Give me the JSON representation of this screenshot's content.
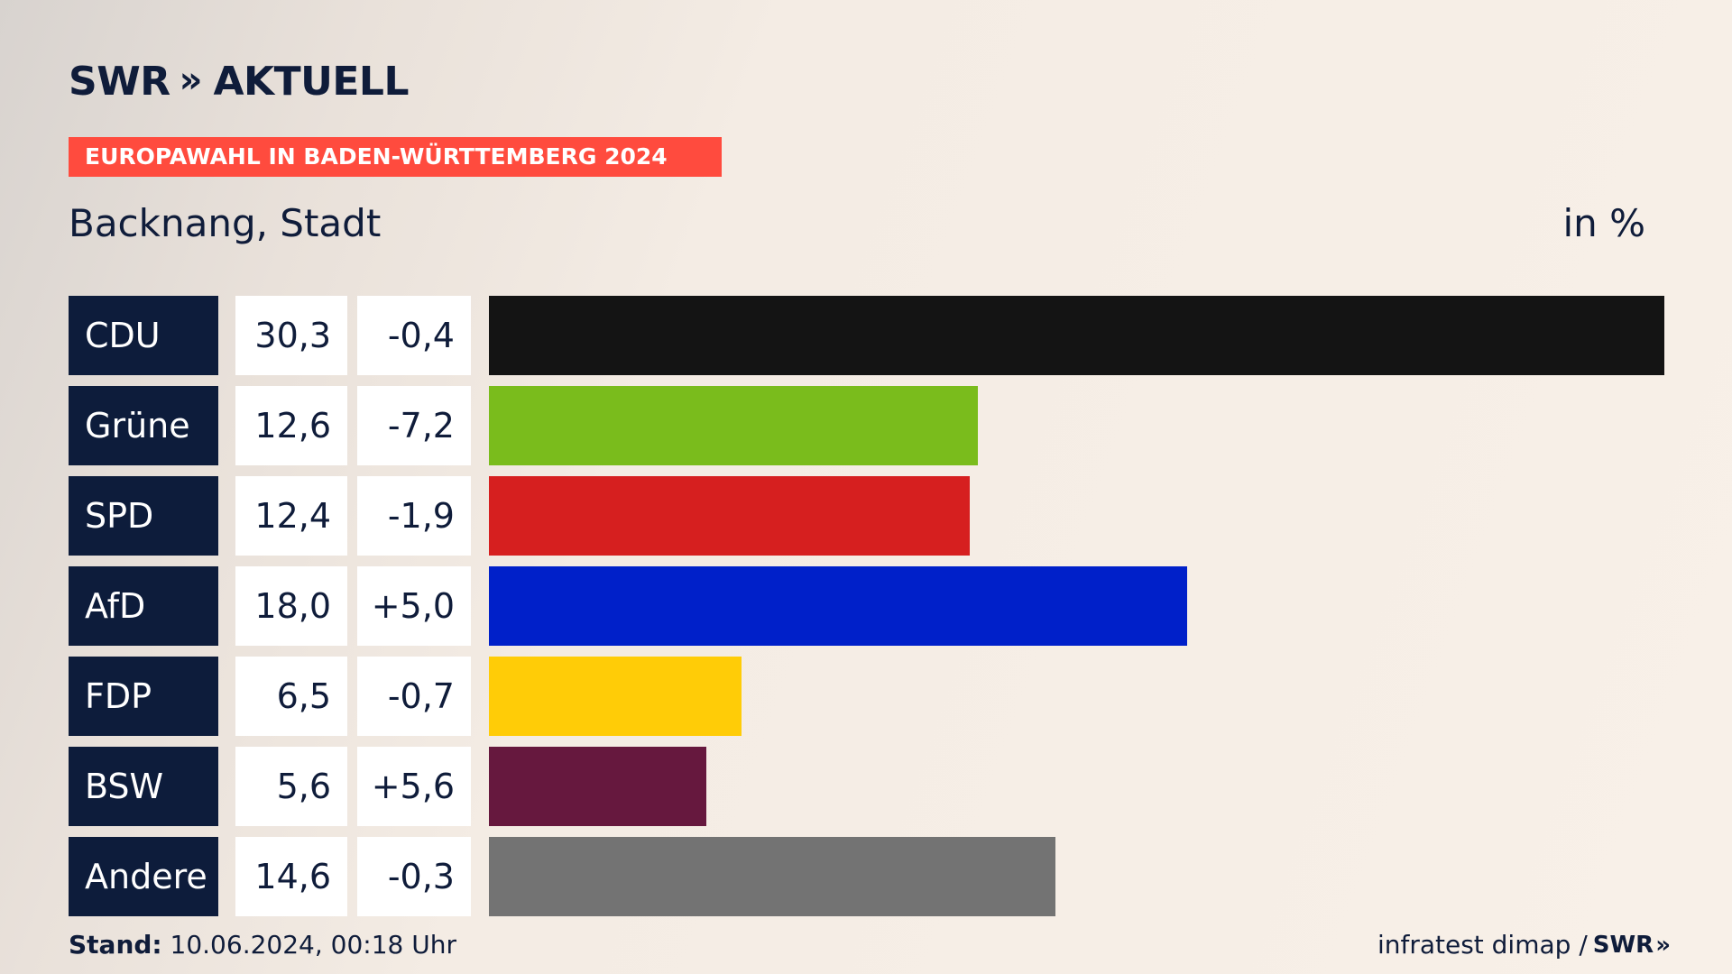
{
  "header": {
    "logo_brand": "SWR",
    "logo_arrows": "»",
    "logo_text": "AKTUELL",
    "banner": "EUROPAWAHL IN BADEN-WÜRTTEMBERG 2024",
    "subtitle": "Backnang, Stadt",
    "unit": "in %"
  },
  "footer": {
    "stand_label": "Stand:",
    "stand_value": "10.06.2024, 00:18 Uhr",
    "source_text": "infratest dimap /",
    "source_brand": "SWR",
    "source_arrows": "»"
  },
  "colors": {
    "background": "#f8f0e8",
    "accent": "#ff4b3e",
    "navy": "#0d1c3b"
  },
  "chart_data": {
    "type": "bar",
    "orientation": "horizontal",
    "title": "Backnang, Stadt",
    "ylabel": "in %",
    "xlim": [
      0,
      30.3
    ],
    "categories": [
      "CDU",
      "Grüne",
      "SPD",
      "AfD",
      "FDP",
      "BSW",
      "Andere"
    ],
    "values": [
      30.3,
      12.6,
      12.4,
      18.0,
      6.5,
      5.6,
      14.6
    ],
    "value_labels": [
      "30,3",
      "12,6",
      "12,4",
      "18,0",
      "6,5",
      "5,6",
      "14,6"
    ],
    "change_labels": [
      "-0,4",
      "-7,2",
      "-1,9",
      "+5,0",
      "-0,7",
      "+5,6",
      "-0,3"
    ],
    "changes": [
      -0.4,
      -7.2,
      -1.9,
      5.0,
      -0.7,
      5.6,
      -0.3
    ],
    "bar_colors": [
      "#141414",
      "#7abc1c",
      "#d61f1f",
      "#0020c9",
      "#ffcc07",
      "#66183e",
      "#737373"
    ]
  }
}
